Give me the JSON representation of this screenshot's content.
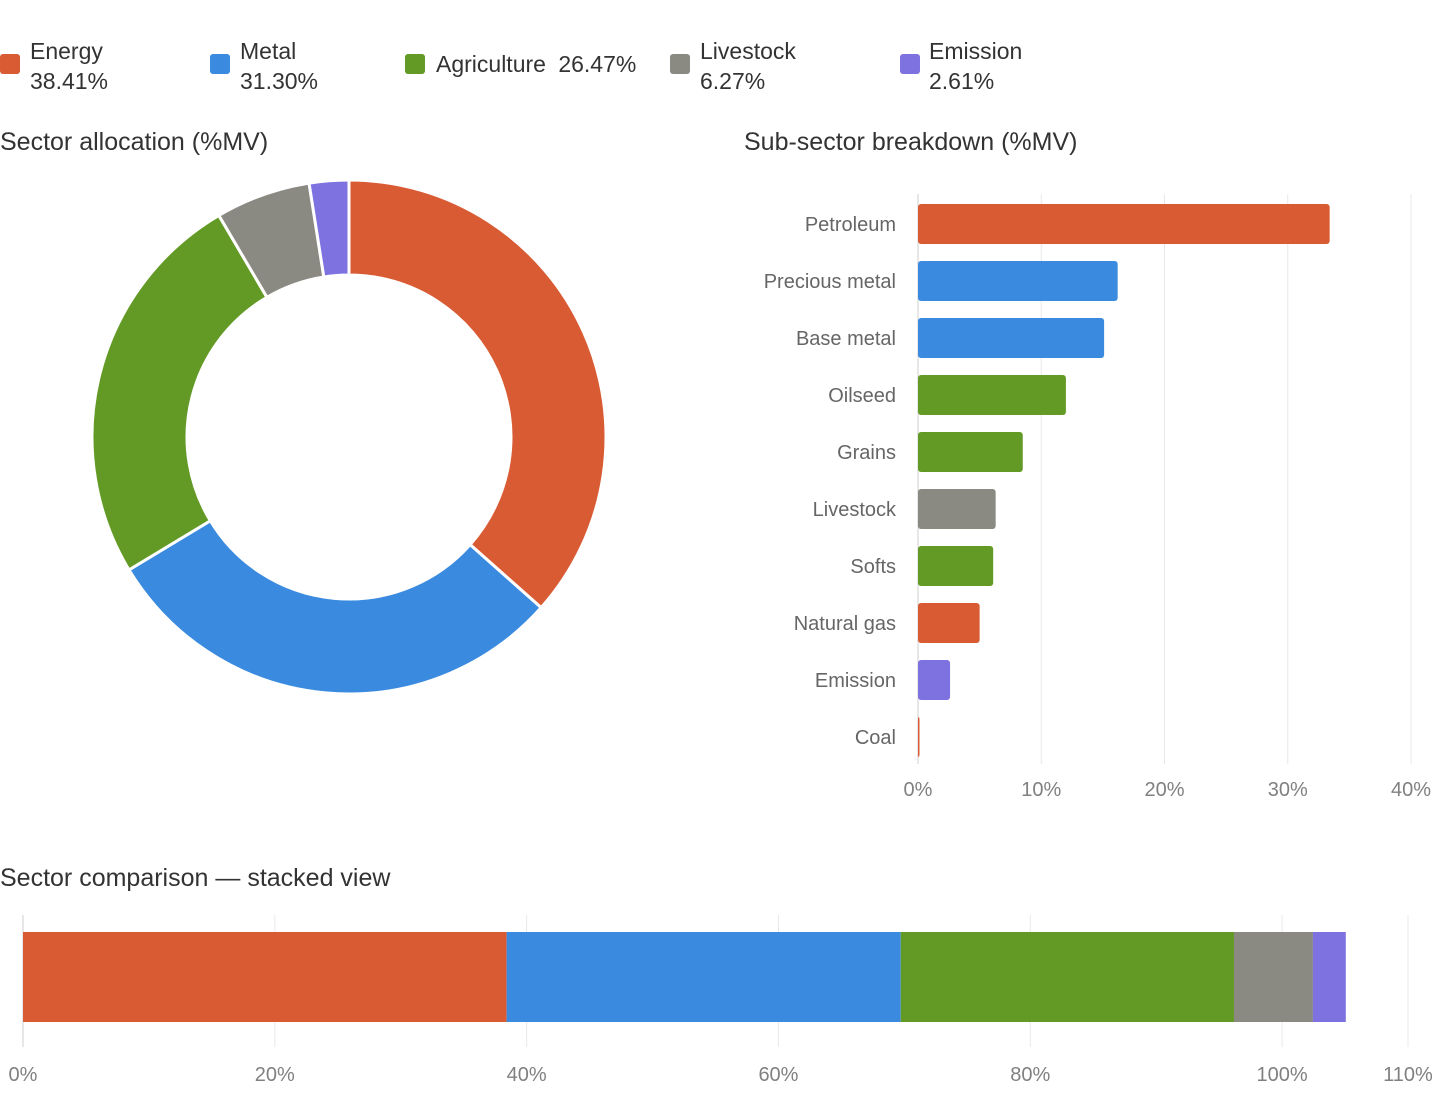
{
  "legend": [
    {
      "name": "Energy",
      "pct": "38.41%",
      "color": "#d95b33"
    },
    {
      "name": "Metal",
      "pct": "31.30%",
      "color": "#3a8bdf"
    },
    {
      "name": "Agriculture",
      "pct": "26.47%",
      "color": "#639a26"
    },
    {
      "name": "Livestock",
      "pct": "6.27%",
      "color": "#8a8a82"
    },
    {
      "name": "Emission",
      "pct": "2.61%",
      "color": "#7e72e0"
    }
  ],
  "donut": {
    "title": "Sector allocation (%MV)"
  },
  "bars": {
    "title": "Sub-sector breakdown (%MV)"
  },
  "stacked": {
    "title": "Sector comparison — stacked view"
  },
  "chart_data": [
    {
      "type": "pie",
      "variant": "donut",
      "title": "Sector allocation (%MV)",
      "categories": [
        "Energy",
        "Metal",
        "Agriculture",
        "Livestock",
        "Emission"
      ],
      "values": [
        38.41,
        31.3,
        26.47,
        6.27,
        2.61
      ],
      "colors": [
        "#d95b33",
        "#3a8bdf",
        "#639a26",
        "#8a8a82",
        "#7e72e0"
      ],
      "legend": "top"
    },
    {
      "type": "bar",
      "orientation": "horizontal",
      "title": "Sub-sector breakdown (%MV)",
      "categories": [
        "Petroleum",
        "Precious metal",
        "Base metal",
        "Oilseed",
        "Grains",
        "Livestock",
        "Softs",
        "Natural gas",
        "Emission",
        "Coal"
      ],
      "values": [
        33.4,
        16.2,
        15.1,
        12.0,
        8.5,
        6.3,
        6.1,
        5.0,
        2.6,
        0.1
      ],
      "colors": [
        "#d95b33",
        "#3a8bdf",
        "#3a8bdf",
        "#639a26",
        "#639a26",
        "#8a8a82",
        "#639a26",
        "#d95b33",
        "#7e72e0",
        "#d95b33"
      ],
      "xlim": [
        0,
        40
      ],
      "xticks": [
        "0%",
        "10%",
        "20%",
        "30%",
        "40%"
      ],
      "xtick_values": [
        0,
        10,
        20,
        30,
        40
      ],
      "grid": true
    },
    {
      "type": "bar",
      "orientation": "horizontal",
      "stacked": true,
      "title": "Sector comparison — stacked view",
      "series": [
        {
          "name": "Energy",
          "values": [
            38.41
          ],
          "color": "#d95b33"
        },
        {
          "name": "Metal",
          "values": [
            31.3
          ],
          "color": "#3a8bdf"
        },
        {
          "name": "Agriculture",
          "values": [
            26.47
          ],
          "color": "#639a26"
        },
        {
          "name": "Livestock",
          "values": [
            6.27
          ],
          "color": "#8a8a82"
        },
        {
          "name": "Emission",
          "values": [
            2.61
          ],
          "color": "#7e72e0"
        }
      ],
      "xlim": [
        0,
        110
      ],
      "xticks": [
        "0%",
        "20%",
        "40%",
        "60%",
        "80%",
        "100%",
        "110%"
      ],
      "xtick_values": [
        0,
        20,
        40,
        60,
        80,
        100,
        110
      ],
      "grid": true
    }
  ]
}
